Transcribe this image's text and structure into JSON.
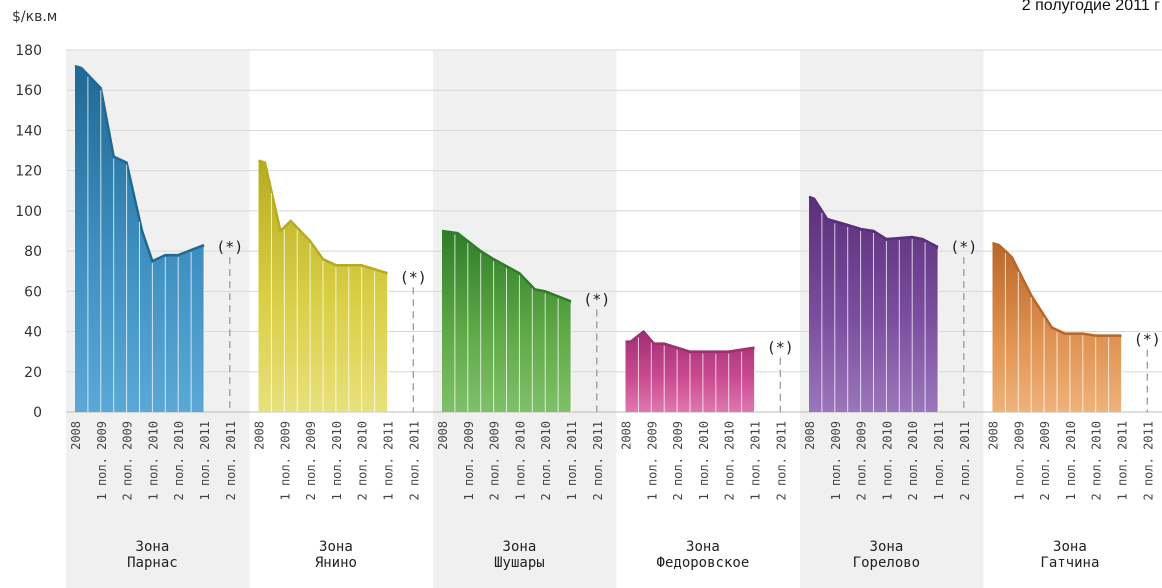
{
  "chart_data": {
    "type": "area",
    "ylabel": "$/кв.м",
    "subtitle": "2 полугодие 2011 г",
    "ylim": [
      0,
      180
    ],
    "yticks": [
      0,
      20,
      40,
      60,
      80,
      100,
      120,
      140,
      160,
      180
    ],
    "categories": [
      "2008",
      "1 пол. 2009",
      "2 пол. 2009",
      "1 пол. 2010",
      "2 пол. 2010",
      "1 пол. 2011",
      "2 пол. 2011"
    ],
    "marker": "(*)",
    "grid": true,
    "groups": [
      {
        "zone_line1": "Зона",
        "zone_line2": "Парнас",
        "color": "#3f8fc1",
        "dark": "#1f6a93",
        "light": "#5aa8d6",
        "points": [
          [
            0,
            172
          ],
          [
            0.25,
            171
          ],
          [
            1,
            161
          ],
          [
            1.5,
            127
          ],
          [
            2,
            124
          ],
          [
            2.6,
            90
          ],
          [
            3,
            75
          ],
          [
            3.5,
            78
          ],
          [
            4,
            78
          ],
          [
            5,
            83
          ]
        ],
        "projection": 77
      },
      {
        "zone_line1": "Зона",
        "zone_line2": "Янино",
        "color": "#d9cf45",
        "dark": "#b7ac21",
        "light": "#e8e07c",
        "points": [
          [
            0,
            125
          ],
          [
            0.25,
            124
          ],
          [
            0.85,
            90
          ],
          [
            1.25,
            95
          ],
          [
            2,
            85
          ],
          [
            2.5,
            76
          ],
          [
            3,
            73
          ],
          [
            4,
            73
          ],
          [
            5,
            69
          ]
        ],
        "projection": 62
      },
      {
        "zone_line1": "Зона",
        "zone_line2": "Шушары",
        "color": "#5ea846",
        "dark": "#2e7d28",
        "light": "#7fc069",
        "points": [
          [
            0,
            90
          ],
          [
            0.6,
            89
          ],
          [
            1.5,
            80
          ],
          [
            2,
            76
          ],
          [
            3,
            69
          ],
          [
            3.6,
            61
          ],
          [
            4,
            60
          ],
          [
            5,
            55
          ]
        ],
        "projection": 51
      },
      {
        "zone_line1": "Зона",
        "zone_line2": "Федоровское",
        "color": "#c9498f",
        "dark": "#9e2f70",
        "light": "#df77b0",
        "points": [
          [
            0,
            35
          ],
          [
            0.2,
            35
          ],
          [
            0.7,
            40
          ],
          [
            1.1,
            34
          ],
          [
            1.5,
            34
          ],
          [
            2.5,
            30
          ],
          [
            4,
            30
          ],
          [
            5,
            32
          ]
        ],
        "projection": 27
      },
      {
        "zone_line1": "Зона",
        "zone_line2": "Горелово",
        "color": "#7a4d9e",
        "dark": "#5a2f7a",
        "light": "#9b76bb",
        "points": [
          [
            0,
            107
          ],
          [
            0.2,
            106
          ],
          [
            0.7,
            96
          ],
          [
            1.5,
            93
          ],
          [
            2,
            91
          ],
          [
            2.5,
            90
          ],
          [
            3,
            86
          ],
          [
            4,
            87
          ],
          [
            4.4,
            86
          ],
          [
            5,
            82
          ]
        ],
        "projection": 77
      },
      {
        "zone_line1": "Зона",
        "zone_line2": "Гатчина",
        "color": "#df9150",
        "dark": "#b8672a",
        "light": "#efb27a",
        "points": [
          [
            0,
            84
          ],
          [
            0.25,
            83
          ],
          [
            0.75,
            77
          ],
          [
            1.5,
            58
          ],
          [
            2.3,
            42
          ],
          [
            2.8,
            39
          ],
          [
            3.5,
            39
          ],
          [
            4,
            38
          ],
          [
            5,
            38
          ]
        ],
        "projection": 31
      }
    ]
  }
}
